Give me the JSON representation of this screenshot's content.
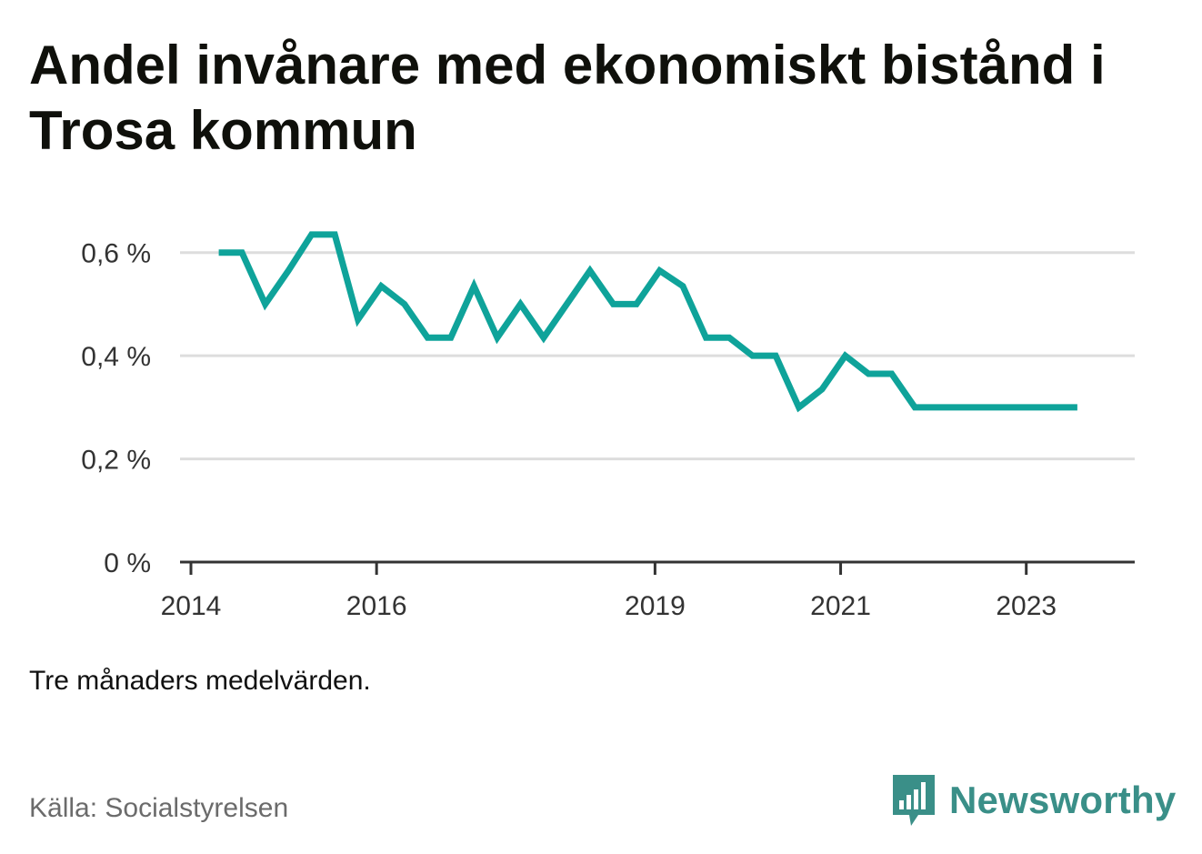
{
  "title": "Andel invånare med ekonomiskt bistånd i Trosa kommun",
  "note": "Tre månaders medelvärden.",
  "source": "Källa: Socialstyrelsen",
  "brand": {
    "name": "Newsworthy",
    "icon": "newsworthy-logo-icon",
    "color": "#3a8f88"
  },
  "colors": {
    "line": "#0fa39a",
    "grid": "#dddddd",
    "axis": "#333333"
  },
  "chart_data": {
    "type": "line",
    "title": "Andel invånare med ekonomiskt bistånd i Trosa kommun",
    "xlabel": "",
    "ylabel": "",
    "ylim": [
      0,
      0.7
    ],
    "xlim": [
      2014,
      2024.1
    ],
    "grid": true,
    "y_ticks": [
      {
        "value": 0,
        "label": "0 %"
      },
      {
        "value": 0.2,
        "label": "0,2 %"
      },
      {
        "value": 0.4,
        "label": "0,4 %"
      },
      {
        "value": 0.6,
        "label": "0,6 %"
      }
    ],
    "x_ticks": [
      {
        "value": 2014,
        "label": "2014"
      },
      {
        "value": 2016,
        "label": "2016"
      },
      {
        "value": 2019,
        "label": "2019"
      },
      {
        "value": 2021,
        "label": "2021"
      },
      {
        "value": 2023,
        "label": "2023"
      }
    ],
    "series": [
      {
        "x": [
          2014.3,
          2014.55,
          2014.8,
          2015.05,
          2015.3,
          2015.55,
          2015.8,
          2016.05,
          2016.3,
          2016.55,
          2016.8,
          2017.05,
          2017.3,
          2017.55,
          2017.8,
          2018.05,
          2018.3,
          2018.55,
          2018.8,
          2019.05,
          2019.3,
          2019.55,
          2019.8,
          2020.05,
          2020.3,
          2020.55,
          2020.8,
          2021.05,
          2021.3,
          2021.55,
          2021.8,
          2022.05,
          2022.3,
          2022.55,
          2022.8,
          2023.05,
          2023.3,
          2023.55
        ],
        "values": [
          0.6,
          0.6,
          0.5,
          0.565,
          0.635,
          0.635,
          0.47,
          0.535,
          0.5,
          0.435,
          0.435,
          0.535,
          0.435,
          0.5,
          0.435,
          0.5,
          0.565,
          0.5,
          0.5,
          0.565,
          0.535,
          0.435,
          0.435,
          0.4,
          0.4,
          0.3,
          0.335,
          0.4,
          0.365,
          0.365,
          0.3,
          0.3,
          0.3,
          0.3,
          0.3,
          0.3,
          0.3,
          0.3
        ]
      }
    ]
  }
}
